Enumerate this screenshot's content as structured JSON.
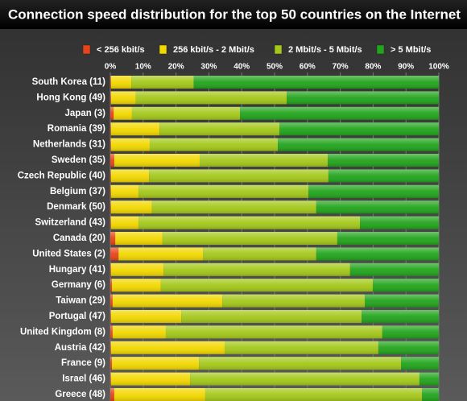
{
  "chart_data": {
    "type": "stacked-bar-horizontal",
    "title": "Connection speed distribution for the top 50 countries on the Internet",
    "categories": [
      "South Korea (11)",
      "Hong Kong (49)",
      "Japan (3)",
      "Romania (39)",
      "Netherlands (31)",
      "Sweden (35)",
      "Czech Republic (40)",
      "Belgium (37)",
      "Denmark (50)",
      "Switzerland (43)",
      "Canada (20)",
      "United States (2)",
      "Hungary (41)",
      "Germany (6)",
      "Taiwan (29)",
      "Portugal (47)",
      "United Kingdom (8)",
      "Austria (42)",
      "France (9)",
      "Israel (46)",
      "Greece (48)"
    ],
    "series": [
      {
        "name": "< 256 kbit/s",
        "color": "#e8431a",
        "values": [
          0.2,
          0.2,
          1.0,
          0.2,
          0.2,
          1.2,
          0.2,
          0.2,
          0.2,
          0.2,
          1.5,
          2.5,
          0.2,
          0.5,
          0.7,
          0.2,
          0.7,
          0.2,
          0.5,
          0.2,
          1.2
        ]
      },
      {
        "name": "256 kbit/s - 2 Mbit/s",
        "color": "#f2d800",
        "values": [
          6.2,
          7.6,
          5.6,
          14.8,
          11.8,
          26,
          11.6,
          8.4,
          12.5,
          8.4,
          14.4,
          25.7,
          16,
          14.9,
          33.4,
          21.4,
          16.2,
          34.6,
          26.5,
          24.1,
          27.7
        ]
      },
      {
        "name": "2 Mbit/s - 5 Mbit/s",
        "color": "#a4c81a",
        "values": [
          19,
          45.9,
          32.9,
          36.5,
          39,
          39,
          54.6,
          51.7,
          50,
          67.4,
          53.2,
          34.5,
          56.8,
          64.5,
          43.4,
          54.9,
          65.9,
          46.8,
          61.5,
          69.8,
          66
        ]
      },
      {
        "name": "> 5 Mbit/s",
        "color": "#22a41c",
        "values": [
          74.6,
          46.3,
          60.5,
          48.5,
          49,
          33.8,
          33.6,
          39.7,
          37.3,
          24,
          30.9,
          37.3,
          27,
          20.1,
          22.5,
          23.5,
          17.2,
          18.4,
          11.5,
          5.9,
          5.1
        ]
      }
    ],
    "xlim": [
      0,
      100
    ],
    "xticks": [
      {
        "value": 0,
        "label": "0%"
      },
      {
        "value": 10,
        "label": "10%"
      },
      {
        "value": 20,
        "label": "20%"
      },
      {
        "value": 30,
        "label": "30%"
      },
      {
        "value": 40,
        "label": "40%"
      },
      {
        "value": 50,
        "label": "50%"
      },
      {
        "value": 60,
        "label": "60%"
      },
      {
        "value": 70,
        "label": "70%"
      },
      {
        "value": 80,
        "label": "80%"
      },
      {
        "value": 90,
        "label": "90%"
      },
      {
        "value": 100,
        "label": "100%"
      }
    ],
    "grid": true
  }
}
